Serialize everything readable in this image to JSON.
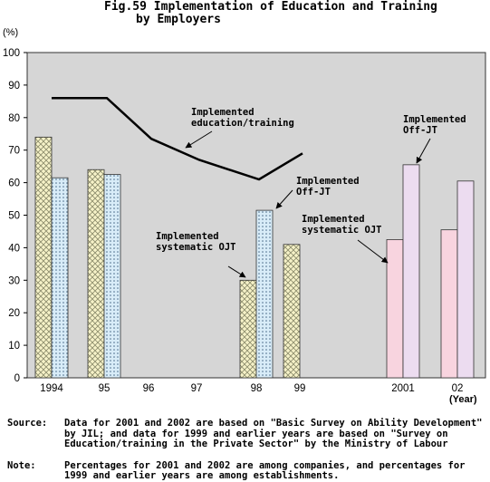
{
  "chart_data": {
    "type": "bar",
    "title": "Fig.59 Implementation of Education and Training by Employers",
    "title_lines": [
      "Fig.59 Implementation of Education and Training",
      "by Employers"
    ],
    "y_unit": "(%)",
    "x_unit": "(Year)",
    "ylim": [
      0,
      100
    ],
    "ytick_step": 10,
    "grid": false,
    "categories": [
      "1994",
      "95",
      "96",
      "97",
      "98",
      "99",
      "2001",
      "02"
    ],
    "series": [
      {
        "name": "Implemented systematic OJT",
        "type": "bar",
        "values": [
          74,
          64,
          null,
          null,
          30,
          41,
          42.5,
          45.5
        ],
        "colors": {
          "until_1999": "#f6f2c8",
          "from_2001": "#f8d4df"
        },
        "pattern_until_1999": "crosshatch"
      },
      {
        "name": "Implemented Off-JT",
        "type": "bar",
        "values": [
          61.5,
          62.5,
          null,
          null,
          51.5,
          null,
          65.5,
          60.5
        ],
        "colors": {
          "until_1999": "#d8ecf8",
          "from_2001": "#ecdcf0"
        },
        "pattern_until_1999": "dots"
      },
      {
        "name": "Implemented education/training",
        "type": "line",
        "values": [
          86,
          86,
          73.5,
          67,
          61,
          69,
          null,
          null
        ]
      }
    ],
    "annotations": [
      {
        "lines": [
          "Implemented",
          "education/training"
        ],
        "target": "line"
      },
      {
        "lines": [
          "Implemented",
          "Off-JT"
        ],
        "target": "off-jt-98"
      },
      {
        "lines": [
          "Implemented",
          "systematic OJT"
        ],
        "target": "ojt-98"
      },
      {
        "lines": [
          "Implemented",
          "systematic OJT"
        ],
        "target": "ojt-2001"
      },
      {
        "lines": [
          "Implemented",
          "Off-JT"
        ],
        "target": "off-jt-2001"
      }
    ]
  },
  "notes": {
    "source_label": "Source:",
    "source_text": "Data for 2001 and 2002 are based on \"Basic Survey on Ability Development\" by JIL; and data for 1999 and earlier years are based on \"Survey on Education/training in the Private Sector\" by the Ministry of Labour",
    "note_label": "Note:",
    "note_text": "Percentages for 2001 and 2002 are among companies, and percentages for 1999 and earlier years are among establishments."
  }
}
